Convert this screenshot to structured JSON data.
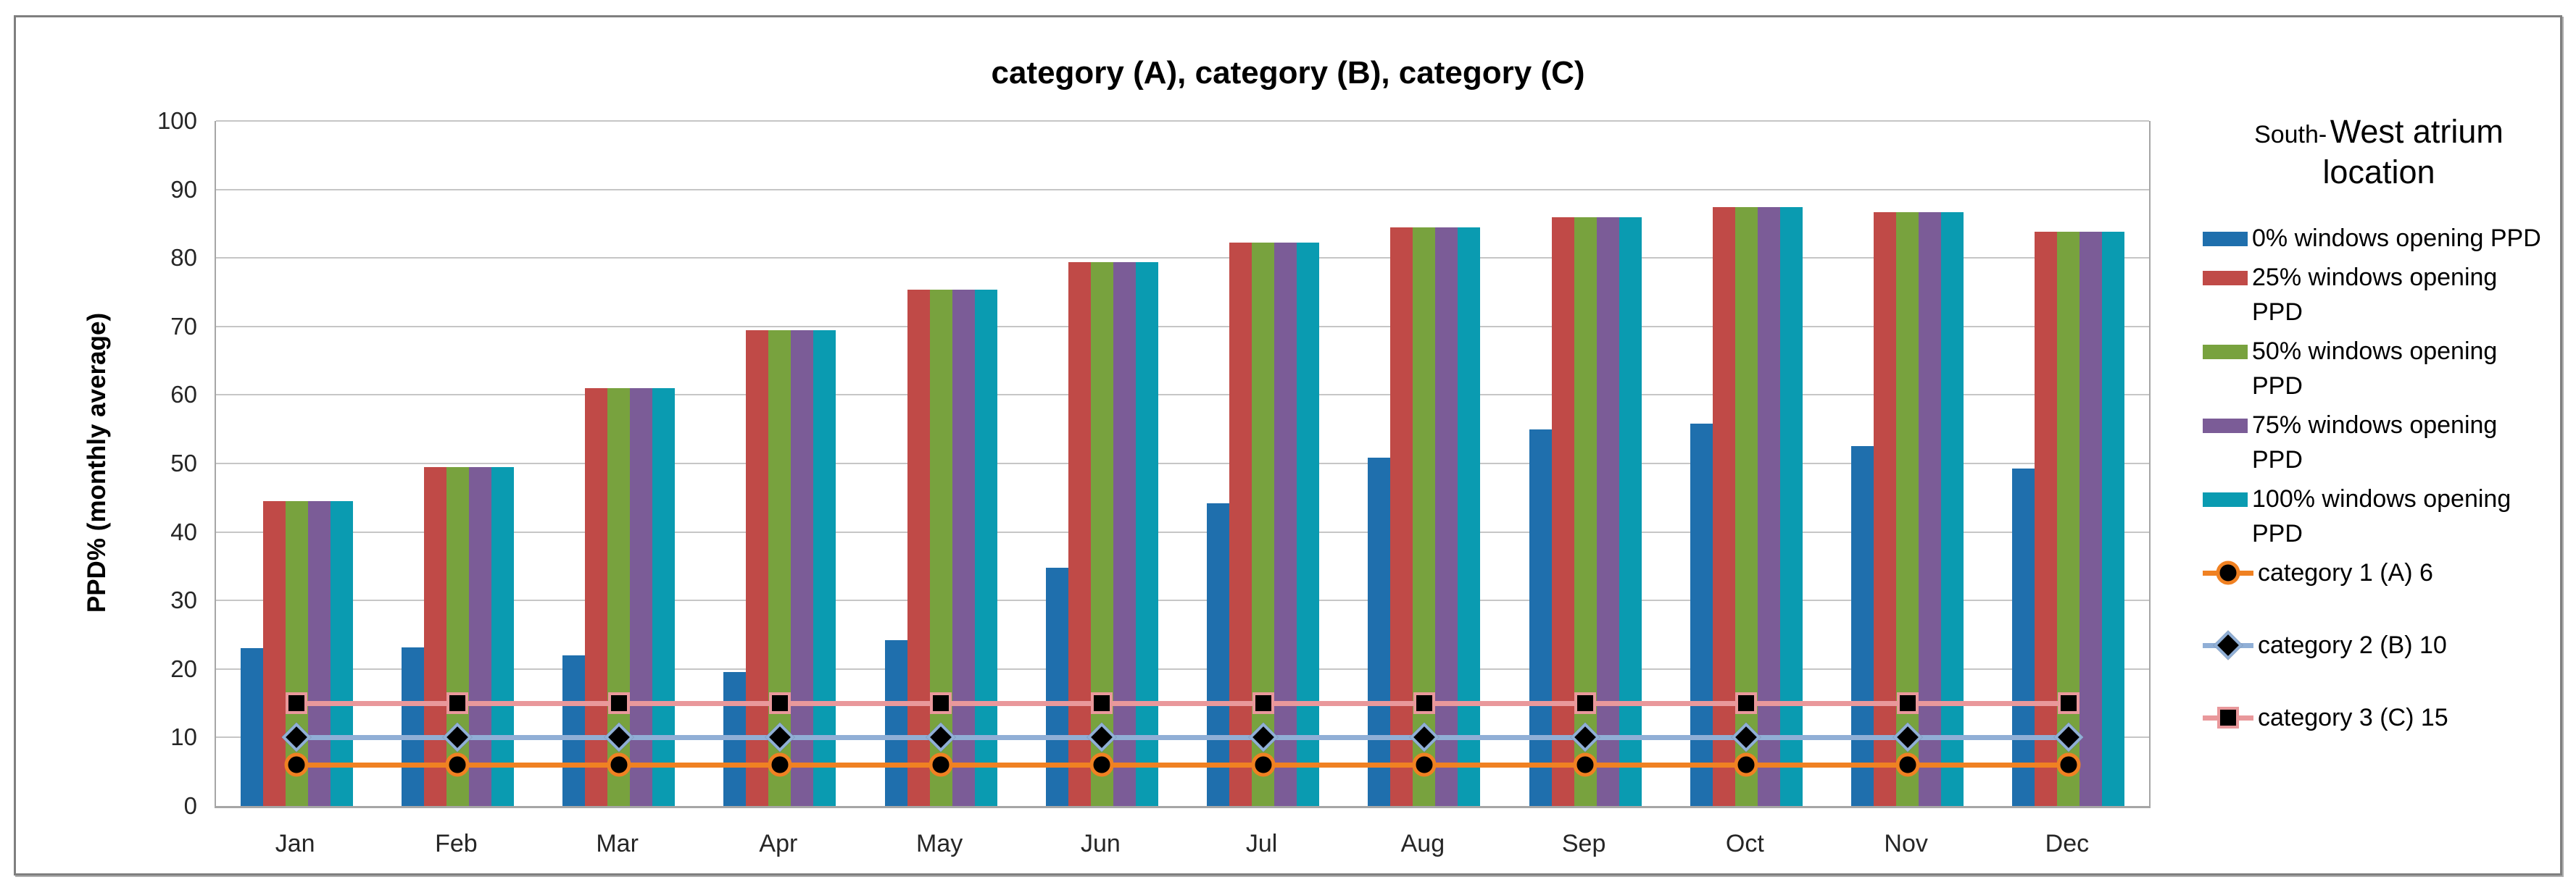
{
  "title": "category (A), category (B), category (C)",
  "y_axis_title": "PPD% (monthly average)",
  "legend": {
    "title_small": "South-",
    "title_big": "West atrium location",
    "items": [
      "0% windows opening PPD",
      "25% windows opening PPD",
      "50% windows opening PPD",
      "75% windows opening PPD",
      "100% windows opening PPD",
      "category 1 (A) 6",
      "category 2 (B) 10",
      "category 3 (C) 15"
    ]
  },
  "colors": {
    "grid": "#c6c6c6",
    "axis": "#a6a6a6",
    "frame": "#7f7f7f"
  },
  "chart_data": {
    "type": "bar",
    "title": "category (A), category (B), category (C)",
    "xlabel": "",
    "ylabel": "PPD% (monthly average)",
    "ylim": [
      0,
      100
    ],
    "y_ticks": [
      0,
      10,
      20,
      30,
      40,
      50,
      60,
      70,
      80,
      90,
      100
    ],
    "grid": true,
    "legend_position": "right",
    "legend_title": "South- West atrium location",
    "categories": [
      "Jan",
      "Feb",
      "Mar",
      "Apr",
      "May",
      "Jun",
      "Jul",
      "Aug",
      "Sep",
      "Oct",
      "Nov",
      "Dec"
    ],
    "series": [
      {
        "name": "0% windows opening PPD",
        "type": "bar",
        "color": "#1f6fad",
        "values": [
          23.0,
          23.2,
          22.0,
          19.6,
          24.2,
          34.8,
          44.2,
          50.8,
          55.0,
          55.8,
          52.5,
          49.3
        ]
      },
      {
        "name": "25% windows opening PPD",
        "type": "bar",
        "color": "#c04a47",
        "values": [
          44.5,
          49.5,
          61.0,
          69.5,
          75.4,
          79.4,
          82.2,
          84.5,
          85.9,
          87.4,
          86.7,
          83.8
        ]
      },
      {
        "name": "50% windows opening PPD",
        "type": "bar",
        "color": "#78a23e",
        "values": [
          44.5,
          49.5,
          61.0,
          69.5,
          75.4,
          79.4,
          82.2,
          84.5,
          85.9,
          87.4,
          86.7,
          83.8
        ]
      },
      {
        "name": "75% windows opening PPD",
        "type": "bar",
        "color": "#7b5c97",
        "values": [
          44.5,
          49.5,
          61.0,
          69.5,
          75.4,
          79.4,
          82.2,
          84.5,
          85.9,
          87.4,
          86.7,
          83.8
        ]
      },
      {
        "name": "100% windows opening PPD",
        "type": "bar",
        "color": "#0a9bb1",
        "values": [
          44.5,
          49.5,
          61.0,
          69.5,
          75.4,
          79.4,
          82.2,
          84.5,
          85.9,
          87.4,
          86.7,
          83.8
        ]
      },
      {
        "name": "category 1 (A) 6",
        "type": "line",
        "color": "#f08122",
        "marker": "circle",
        "values": [
          6,
          6,
          6,
          6,
          6,
          6,
          6,
          6,
          6,
          6,
          6,
          6
        ]
      },
      {
        "name": "category 2 (B) 10",
        "type": "line",
        "color": "#90afd6",
        "marker": "diamond",
        "values": [
          10,
          10,
          10,
          10,
          10,
          10,
          10,
          10,
          10,
          10,
          10,
          10
        ]
      },
      {
        "name": "category 3 (C) 15",
        "type": "line",
        "color": "#e9989b",
        "marker": "square",
        "values": [
          15,
          15,
          15,
          15,
          15,
          15,
          15,
          15,
          15,
          15,
          15,
          15
        ]
      }
    ]
  }
}
